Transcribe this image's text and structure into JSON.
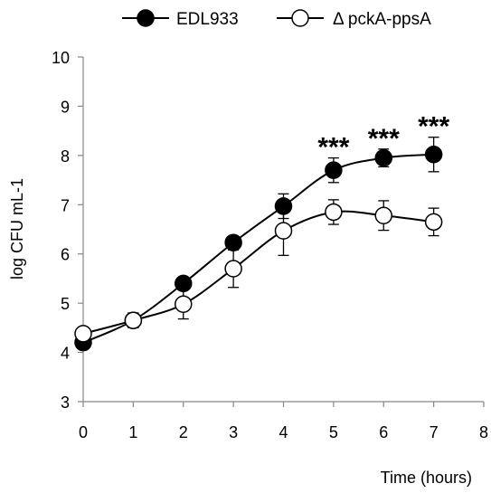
{
  "chart_data": {
    "type": "line",
    "xlabel": "Time (hours)",
    "ylabel": "log CFU mL-1",
    "xlim": [
      0,
      8
    ],
    "ylim": [
      3,
      10
    ],
    "xticks": [
      0,
      1,
      2,
      3,
      4,
      5,
      6,
      7,
      8
    ],
    "yticks": [
      3,
      4,
      5,
      6,
      7,
      8,
      9,
      10
    ],
    "grid": false,
    "legend_position": "top",
    "series": [
      {
        "name": "EDL933",
        "marker": "filled-circle",
        "color": "#000000",
        "x": [
          0,
          1,
          2,
          3,
          4,
          5,
          6,
          7
        ],
        "y": [
          4.2,
          4.65,
          5.4,
          6.23,
          6.97,
          7.7,
          7.95,
          8.02
        ],
        "err": [
          0.1,
          0.15,
          0.12,
          0.12,
          0.25,
          0.25,
          0.18,
          0.35
        ]
      },
      {
        "name": "Δ pckA-ppsA",
        "marker": "open-circle",
        "color": "#000000",
        "x": [
          0,
          1,
          2,
          3,
          4,
          5,
          6,
          7
        ],
        "y": [
          4.38,
          4.65,
          4.98,
          5.7,
          6.47,
          6.85,
          6.78,
          6.65
        ],
        "err": [
          0.08,
          0.15,
          0.3,
          0.38,
          0.5,
          0.25,
          0.3,
          0.28
        ]
      }
    ],
    "annotations": [
      {
        "x": 5,
        "y": 7.7,
        "err": 0.25,
        "text": "***"
      },
      {
        "x": 6,
        "y": 7.95,
        "err": 0.18,
        "text": "***"
      },
      {
        "x": 7,
        "y": 8.02,
        "err": 0.35,
        "text": "***"
      }
    ]
  }
}
